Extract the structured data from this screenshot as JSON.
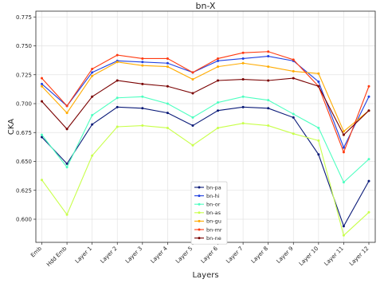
{
  "chart_data": {
    "type": "line",
    "title": "bn-X",
    "xlabel": "Layers",
    "ylabel": "CKA",
    "ylim": [
      0.58,
      0.78
    ],
    "yticks": [
      0.6,
      0.625,
      0.65,
      0.675,
      0.7,
      0.725,
      0.75,
      0.775
    ],
    "ytick_labels": [
      "0.600",
      "0.625",
      "0.650",
      "0.675",
      "0.700",
      "0.725",
      "0.750",
      "0.775"
    ],
    "categories": [
      "Emb",
      "Hdd Emb",
      "Layer 1",
      "Layer 2",
      "Layer 3",
      "Layer 4",
      "Layer 5",
      "Layer 6",
      "Layer 7",
      "Layer 8",
      "Layer 9",
      "Layer 10",
      "Layer 11",
      "Layer 12"
    ],
    "grid": true,
    "legend_position": "bottom-center",
    "series": [
      {
        "name": "bn-pa",
        "color": "#0a1a78",
        "values": [
          0.671,
          0.648,
          0.682,
          0.697,
          0.696,
          0.692,
          0.681,
          0.694,
          0.697,
          0.696,
          0.688,
          0.656,
          0.594,
          0.633
        ]
      },
      {
        "name": "bn-hi",
        "color": "#1f3fe0",
        "values": [
          0.717,
          0.698,
          0.727,
          0.737,
          0.736,
          0.735,
          0.727,
          0.737,
          0.739,
          0.741,
          0.737,
          0.719,
          0.662,
          0.706
        ]
      },
      {
        "name": "bn-or",
        "color": "#4dffc0",
        "values": [
          0.673,
          0.645,
          0.69,
          0.705,
          0.706,
          0.7,
          0.688,
          0.701,
          0.706,
          0.703,
          0.691,
          0.679,
          0.632,
          0.652
        ]
      },
      {
        "name": "bn-as",
        "color": "#c8ff4a",
        "values": [
          0.634,
          0.604,
          0.655,
          0.68,
          0.681,
          0.679,
          0.664,
          0.679,
          0.683,
          0.681,
          0.674,
          0.668,
          0.586,
          0.606
        ]
      },
      {
        "name": "bn-gu",
        "color": "#ffab00",
        "values": [
          0.715,
          0.692,
          0.724,
          0.736,
          0.733,
          0.732,
          0.721,
          0.732,
          0.735,
          0.732,
          0.728,
          0.726,
          0.676,
          0.694
        ]
      },
      {
        "name": "bn-mr",
        "color": "#ff3a10",
        "values": [
          0.722,
          0.698,
          0.73,
          0.742,
          0.739,
          0.739,
          0.727,
          0.739,
          0.744,
          0.745,
          0.738,
          0.715,
          0.658,
          0.715
        ]
      },
      {
        "name": "bn-ne",
        "color": "#7a0000",
        "values": [
          0.702,
          0.678,
          0.706,
          0.72,
          0.717,
          0.715,
          0.709,
          0.72,
          0.721,
          0.72,
          0.722,
          0.715,
          0.673,
          0.694
        ]
      }
    ]
  }
}
